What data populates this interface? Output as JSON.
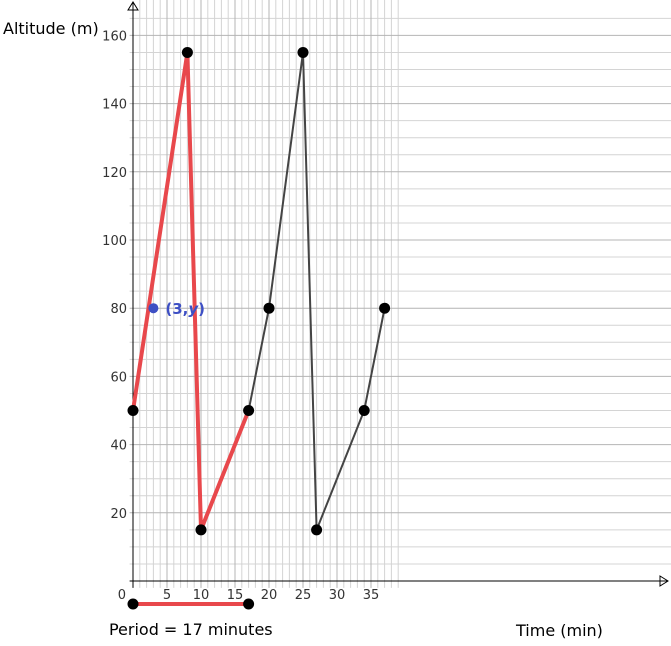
{
  "chart_data": {
    "type": "line",
    "xlabel": "Time (min)",
    "ylabel": "Altitude (m)",
    "xlim": [
      -0.5,
      39
    ],
    "ylim": [
      -2,
      168
    ],
    "x_ticks": [
      5,
      10,
      15,
      20,
      25,
      30,
      35
    ],
    "y_ticks": [
      20,
      40,
      60,
      80,
      100,
      120,
      140,
      160
    ],
    "origin_label": "0",
    "minor_grid_step_x": 1,
    "minor_grid_step_y": 5,
    "grid": true,
    "series": [
      {
        "color": "#e8484c",
        "points": [
          [
            0,
            50
          ],
          [
            8,
            155
          ],
          [
            10,
            15
          ],
          [
            17,
            50
          ]
        ]
      },
      {
        "color": "#444444",
        "points": [
          [
            17,
            50
          ],
          [
            20,
            80
          ],
          [
            25,
            155
          ],
          [
            27,
            15
          ],
          [
            34,
            50
          ],
          [
            37,
            80
          ]
        ]
      }
    ],
    "vertices": [
      [
        0,
        50
      ],
      [
        8,
        155
      ],
      [
        10,
        15
      ],
      [
        17,
        50
      ],
      [
        20,
        80
      ],
      [
        25,
        155
      ],
      [
        27,
        15
      ],
      [
        34,
        50
      ],
      [
        37,
        80
      ]
    ],
    "highlight_point": {
      "x": 3,
      "y": 80,
      "label_prefix": "(3,",
      "label_var": "y",
      "label_suffix": ")",
      "color": "#3d4fc4"
    },
    "period_segment": {
      "x_start": 0,
      "x_end": 17,
      "label": "Period = 17 minutes",
      "color": "#e8484c"
    }
  }
}
